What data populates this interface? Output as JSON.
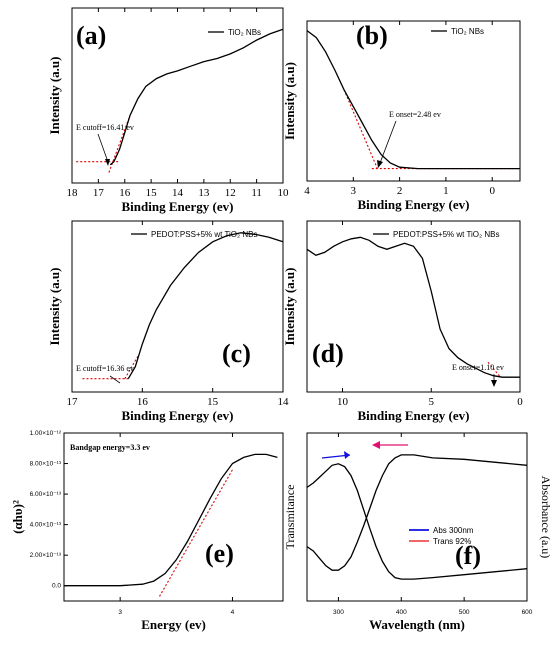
{
  "chart_data": [
    {
      "id": "a",
      "type": "line",
      "panel_label": "(a)",
      "xlabel": "Binding Energy (ev)",
      "ylabel": "Intensity (a.u)",
      "xlim": [
        18,
        10
      ],
      "x_ticks": [
        18,
        17,
        16,
        15,
        14,
        13,
        12,
        11,
        10
      ],
      "legend": "TiO₂ NBs",
      "annotation": "E cutoff=16.41 ev",
      "series": [
        {
          "name": "TiO₂ NBs",
          "color": "#000000",
          "x": [
            16.55,
            16.41,
            16.2,
            16.0,
            15.8,
            15.5,
            15.2,
            14.8,
            14.4,
            14.0,
            13.5,
            13.0,
            12.5,
            12.0,
            11.5,
            11.0,
            10.5,
            10.0
          ],
          "y": [
            0.05,
            0.07,
            0.15,
            0.26,
            0.37,
            0.48,
            0.56,
            0.61,
            0.64,
            0.66,
            0.69,
            0.72,
            0.74,
            0.77,
            0.81,
            0.86,
            0.9,
            0.93
          ]
        }
      ],
      "fit_lines": [
        {
          "x": [
            16.25,
            17.85
          ],
          "y": [
            0.07,
            0.07
          ]
        },
        {
          "x": [
            16.6,
            15.8
          ],
          "y": [
            0.0,
            0.37
          ]
        }
      ]
    },
    {
      "id": "b",
      "type": "line",
      "panel_label": "(b)",
      "xlabel": "Binding Energy (ev)",
      "ylabel": "Intensity (a.u)",
      "xlim": [
        4,
        -0.6
      ],
      "x_ticks": [
        4,
        3,
        2,
        1,
        0
      ],
      "legend": "TiO₂ NBs",
      "annotation": "E onset=2.48 ev",
      "series": [
        {
          "name": "TiO₂ NBs",
          "color": "#000000",
          "x": [
            4.0,
            3.8,
            3.6,
            3.4,
            3.2,
            3.0,
            2.8,
            2.6,
            2.4,
            2.2,
            2.0,
            1.6,
            1.2,
            0.8,
            0.4,
            0.0,
            -0.6
          ],
          "y": [
            1.0,
            0.95,
            0.85,
            0.72,
            0.58,
            0.46,
            0.34,
            0.22,
            0.12,
            0.06,
            0.03,
            0.02,
            0.02,
            0.02,
            0.02,
            0.02,
            0.02
          ]
        }
      ],
      "fit_lines": [
        {
          "x": [
            3.2,
            2.48
          ],
          "y": [
            0.58,
            0.02
          ]
        },
        {
          "x": [
            2.6,
            -0.6
          ],
          "y": [
            0.02,
            0.02
          ]
        }
      ]
    },
    {
      "id": "c",
      "type": "line",
      "panel_label": "(c)",
      "xlabel": "Binding Energy (ev)",
      "ylabel": "Intensity (a.u)",
      "xlim": [
        17,
        14
      ],
      "x_ticks": [
        17,
        16,
        15,
        14
      ],
      "legend": "PEDOT:PSS+5% wt TiO₂ NBs",
      "annotation": "E cutoff=16.36 ev",
      "series": [
        {
          "name": "PEDOT:PSS+5% wt TiO₂ NBs",
          "color": "#000000",
          "x": [
            16.2,
            16.1,
            16.0,
            15.9,
            15.8,
            15.6,
            15.4,
            15.2,
            15.0,
            14.8,
            14.6,
            14.4,
            14.2,
            14.0
          ],
          "y": [
            0.02,
            0.1,
            0.25,
            0.38,
            0.48,
            0.64,
            0.76,
            0.86,
            0.93,
            0.97,
            0.99,
            0.98,
            0.96,
            0.93
          ]
        }
      ],
      "fit_lines": [
        {
          "x": [
            16.85,
            16.2
          ],
          "y": [
            0.02,
            0.02
          ]
        },
        {
          "x": [
            16.25,
            16.05
          ],
          "y": [
            0.02,
            0.18
          ]
        }
      ]
    },
    {
      "id": "d",
      "type": "line",
      "panel_label": "(d)",
      "xlabel": "Binding Energy (ev)",
      "ylabel": "Intensity (a.u)",
      "xlim": [
        12,
        0
      ],
      "x_ticks": [
        10,
        5,
        0
      ],
      "legend": "PEDOT:PSS+5% wt TiO₂ NBs",
      "annotation": "E onset=1.10 ev",
      "series": [
        {
          "name": "PEDOT:PSS+5% wt TiO₂ NBs",
          "color": "#000000",
          "x": [
            12.0,
            11.5,
            11.0,
            10.5,
            10.0,
            9.5,
            9.0,
            8.5,
            8.0,
            7.5,
            7.0,
            6.5,
            6.0,
            5.5,
            5.0,
            4.5,
            4.0,
            3.5,
            3.0,
            2.5,
            2.0,
            1.5,
            1.0,
            0.5,
            0.0
          ],
          "y": [
            0.88,
            0.84,
            0.86,
            0.9,
            0.93,
            0.95,
            0.96,
            0.94,
            0.9,
            0.88,
            0.9,
            0.92,
            0.9,
            0.82,
            0.6,
            0.35,
            0.22,
            0.16,
            0.12,
            0.09,
            0.06,
            0.04,
            0.03,
            0.03,
            0.03
          ]
        }
      ],
      "fit_lines": [
        {
          "x": [
            1.8,
            1.1
          ],
          "y": [
            0.13,
            0.03
          ]
        }
      ]
    },
    {
      "id": "e",
      "type": "line",
      "panel_label": "(e)",
      "xlabel": "Energy (ev)",
      "ylabel": "(αhυ)²",
      "xlim": [
        2.5,
        4.45
      ],
      "ylim": [
        -1e-13,
        1e-12
      ],
      "x_ticks": [
        3,
        4
      ],
      "y_ticks": [
        0.0,
        2e-13,
        4e-13,
        6e-13,
        8e-13,
        1e-12
      ],
      "y_tick_labels": [
        "0.0",
        "2.00×10⁻¹³",
        "4.00×10⁻¹³",
        "6.00×10⁻¹³",
        "8.00×10⁻¹³",
        "1.00×10⁻¹²"
      ],
      "annotation": "Bandgap energy=3.3 ev",
      "series": [
        {
          "name": "",
          "color": "#000000",
          "x": [
            2.5,
            3.0,
            3.2,
            3.3,
            3.4,
            3.5,
            3.6,
            3.7,
            3.8,
            3.9,
            4.0,
            4.1,
            4.2,
            4.3,
            4.4
          ],
          "y": [
            0,
            0,
            1e-14,
            3e-14,
            8e-14,
            1.7e-13,
            2.9e-13,
            4.3e-13,
            5.7e-13,
            7e-13,
            8e-13,
            8.4e-13,
            8.6e-13,
            8.6e-13,
            8.4e-13
          ]
        }
      ],
      "fit_lines": [
        {
          "x": [
            3.35,
            4.0
          ],
          "y": [
            -7e-14,
            7.6e-13
          ]
        }
      ]
    },
    {
      "id": "f",
      "type": "line",
      "panel_label": "(f)",
      "xlabel": "Wavelength (nm)",
      "ylabel": "Transmitance",
      "ylabel_right": "Absorbance (a.u)",
      "xlim": [
        250,
        600
      ],
      "x_ticks": [
        300,
        400,
        500,
        600
      ],
      "series": [
        {
          "name": "Abs 300nm",
          "color": "#1010e0",
          "x": [
            250,
            260,
            270,
            280,
            290,
            300,
            310,
            320,
            330,
            340,
            350,
            360,
            370,
            380,
            390,
            400,
            420,
            450,
            500,
            550,
            600
          ],
          "y": [
            0.7,
            0.73,
            0.77,
            0.81,
            0.85,
            0.86,
            0.84,
            0.78,
            0.68,
            0.55,
            0.42,
            0.3,
            0.2,
            0.13,
            0.09,
            0.08,
            0.08,
            0.09,
            0.11,
            0.13,
            0.15
          ]
        },
        {
          "name": "Trans 92%",
          "color": "#f05050",
          "x": [
            250,
            260,
            270,
            280,
            290,
            300,
            310,
            320,
            330,
            340,
            350,
            360,
            370,
            380,
            390,
            400,
            410,
            420,
            450,
            500,
            550,
            600
          ],
          "y": [
            0.3,
            0.27,
            0.22,
            0.17,
            0.14,
            0.14,
            0.17,
            0.23,
            0.33,
            0.44,
            0.56,
            0.68,
            0.78,
            0.86,
            0.9,
            0.92,
            0.92,
            0.92,
            0.9,
            0.89,
            0.87,
            0.85
          ]
        }
      ]
    }
  ]
}
